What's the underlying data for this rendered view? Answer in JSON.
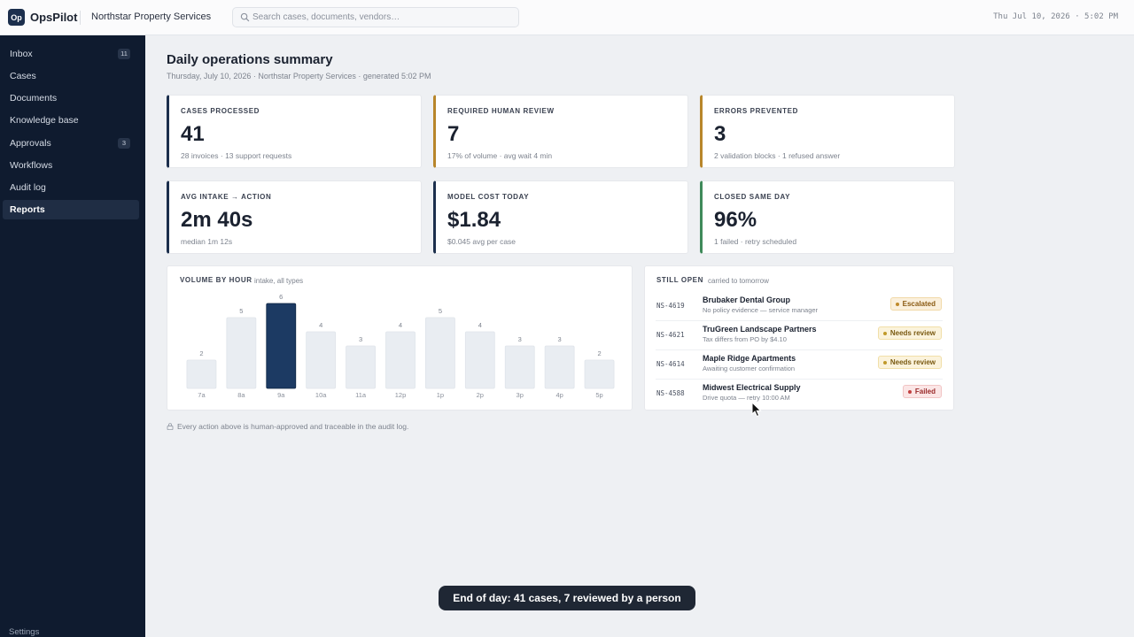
{
  "app": {
    "logo": "Op",
    "name": "OpsPilot",
    "org": "Northstar Property Services"
  },
  "search": {
    "placeholder": "Search cases, documents, vendors…",
    "icon": "search-icon"
  },
  "header": {
    "datetime": "Thu Jul 10, 2026 · 5:02 PM"
  },
  "sidebar": {
    "items": [
      {
        "label": "Inbox",
        "badge": "11"
      },
      {
        "label": "Cases"
      },
      {
        "label": "Documents"
      },
      {
        "label": "Knowledge base"
      },
      {
        "label": "Approvals",
        "badge": "3"
      },
      {
        "label": "Workflows"
      },
      {
        "label": "Audit log"
      },
      {
        "label": "Reports",
        "active": true
      }
    ],
    "settings": "Settings"
  },
  "page": {
    "title": "Daily operations summary",
    "subtitle": "Thursday, July 10, 2026 · Northstar Property Services · generated 5:02 PM"
  },
  "kpis": [
    {
      "label": "CASES PROCESSED",
      "value": "41",
      "note": "28 invoices · 13 support requests",
      "accent": "#1c2f4d"
    },
    {
      "label": "REQUIRED HUMAN REVIEW",
      "value": "7",
      "note": "17% of volume · avg wait 4 min",
      "accent": "#b8862b"
    },
    {
      "label": "ERRORS PREVENTED",
      "value": "3",
      "note": "2 validation blocks · 1 refused answer",
      "accent": "#b8862b"
    },
    {
      "label": "AVG INTAKE → ACTION",
      "value": "2m 40s",
      "note": "median 1m 12s",
      "accent": "#1c2f4d"
    },
    {
      "label": "MODEL COST TODAY",
      "value": "$1.84",
      "note": "$0.045 avg per case",
      "accent": "#1c2f4d"
    },
    {
      "label": "CLOSED SAME DAY",
      "value": "96%",
      "note": "1 failed · retry scheduled",
      "accent": "#3f8a5a"
    }
  ],
  "volume": {
    "label": "VOLUME BY HOUR",
    "sub": "intake, all types",
    "bar_color": "#e9edf2",
    "highlight_color": "#1c3a63"
  },
  "chart_data": {
    "type": "bar",
    "title": "VOLUME BY HOUR",
    "subtitle": "intake, all types",
    "categories": [
      "7a",
      "8a",
      "9a",
      "10a",
      "11a",
      "12p",
      "1p",
      "2p",
      "3p",
      "4p",
      "5p"
    ],
    "values": [
      2,
      5,
      6,
      4,
      3,
      4,
      5,
      4,
      3,
      3,
      2
    ],
    "highlight_index": 2,
    "ylim": [
      0,
      6
    ],
    "grid": false,
    "data_labels": true
  },
  "still_open": {
    "label": "STILL OPEN",
    "sub": "carried to tomorrow",
    "rows": [
      {
        "id": "NS-4619",
        "title": "Brubaker Dental Group",
        "note": "No policy evidence — service manager",
        "status": "Escalated",
        "bg": "#fbf0dc",
        "fg": "#8a5a12",
        "border": "#f1d9a8",
        "dot": "#c08a2a"
      },
      {
        "id": "NS-4621",
        "title": "TruGreen Landscape Partners",
        "note": "Tax differs from PO by $4.10",
        "status": "Needs review",
        "bg": "#fbf3dc",
        "fg": "#7a5a12",
        "border": "#f1dfa8",
        "dot": "#c09a2a"
      },
      {
        "id": "NS-4614",
        "title": "Maple Ridge Apartments",
        "note": "Awaiting customer confirmation",
        "status": "Needs review",
        "bg": "#fbf3dc",
        "fg": "#7a5a12",
        "border": "#f1dfa8",
        "dot": "#c09a2a"
      },
      {
        "id": "NS-4588",
        "title": "Midwest Electrical Supply",
        "note": "Drive quota — retry 10:00 AM",
        "status": "Failed",
        "bg": "#fbe6e6",
        "fg": "#9a2a2a",
        "border": "#f1c4c4",
        "dot": "#c24040"
      }
    ]
  },
  "footnote": "Every action above is human-approved and traceable in the audit log.",
  "toast": "End of day: 41 cases, 7 reviewed by a person"
}
